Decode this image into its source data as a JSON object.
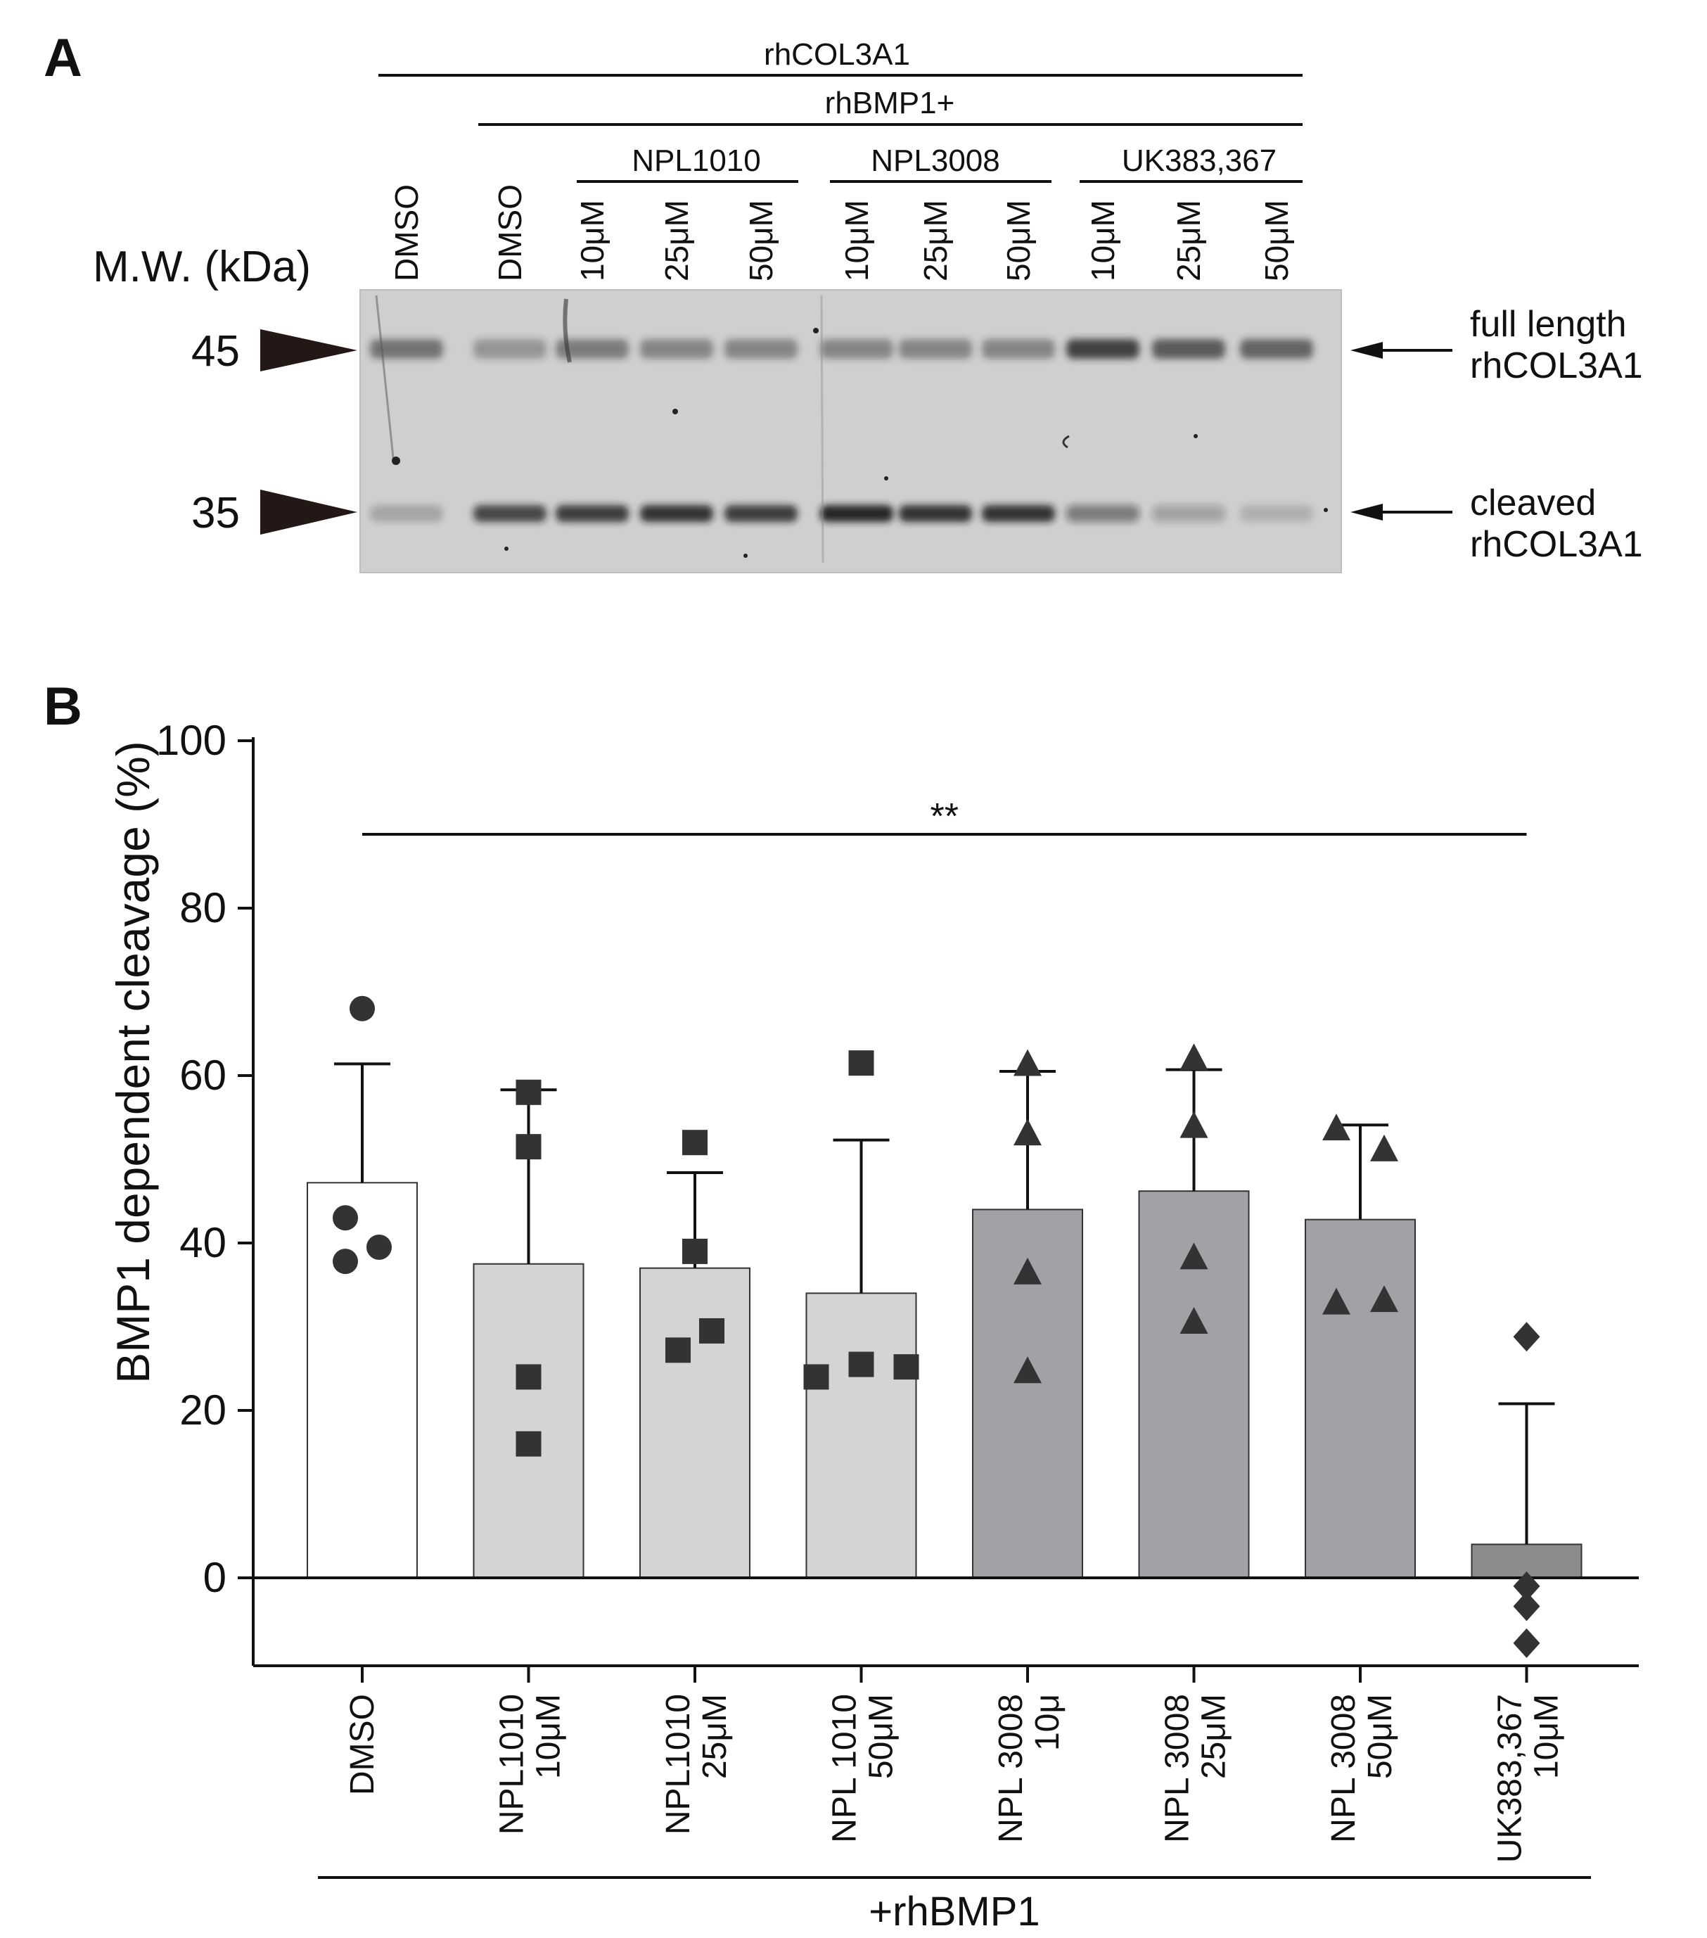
{
  "panel_a": {
    "label": "A",
    "mw_title": "M.W. (kDa)",
    "markers": [
      {
        "text": "45",
        "kda": 45
      },
      {
        "text": "35",
        "kda": 35
      }
    ],
    "header_top": "rhCOL3A1",
    "header_second": "rhBMP1+",
    "groups": [
      {
        "name": "NPL1010"
      },
      {
        "name": "NPL3008"
      },
      {
        "name": "UK383,367"
      }
    ],
    "lanes": [
      "DMSO",
      "DMSO",
      "10μM",
      "25μM",
      "50μM",
      "10μM",
      "25μM",
      "50μM",
      "10μM",
      "25μM",
      "50μM"
    ],
    "band_annotations": [
      {
        "line1": "full length",
        "line2": "rhCOL3A1"
      },
      {
        "line1": "cleaved",
        "line2": "rhCOL3A1"
      }
    ],
    "band_intensity": {
      "full_length": [
        0.55,
        0.35,
        0.5,
        0.45,
        0.45,
        0.45,
        0.45,
        0.45,
        0.85,
        0.7,
        0.65
      ],
      "cleaved": [
        0.2,
        0.75,
        0.8,
        0.85,
        0.8,
        0.95,
        0.85,
        0.85,
        0.45,
        0.25,
        0.15
      ]
    }
  },
  "panel_b": {
    "label": "B"
  },
  "chart_data": {
    "type": "bar",
    "ylabel": "BMP1 dependent cleavage (%)",
    "xlabel": "+rhBMP1",
    "ylim": [
      -10,
      100
    ],
    "yticks": [
      0,
      20,
      40,
      60,
      80,
      100
    ],
    "categories": [
      {
        "line1": "DMSO",
        "line2": ""
      },
      {
        "line1": "NPL1010",
        "line2": "10μM"
      },
      {
        "line1": "NPL1010",
        "line2": "25μM"
      },
      {
        "line1": "NPL 1010",
        "line2": "50μM"
      },
      {
        "line1": "NPL 3008",
        "line2": "10μ"
      },
      {
        "line1": "NPL 3008",
        "line2": "25μM"
      },
      {
        "line1": "NPL 3008",
        "line2": "50μM"
      },
      {
        "line1": "UK383,367",
        "line2": "10μM"
      }
    ],
    "means": [
      47.2,
      37.5,
      37.0,
      34.0,
      44.0,
      46.2,
      42.8,
      4.0
    ],
    "sd": [
      14.2,
      20.8,
      11.4,
      18.3,
      16.5,
      14.5,
      11.3,
      16.8
    ],
    "points": [
      [
        68.0,
        43.0,
        39.5,
        37.8
      ],
      [
        58.0,
        51.5,
        24.0,
        16.0
      ],
      [
        52.0,
        39.0,
        29.5,
        27.2
      ],
      [
        61.5,
        25.5,
        25.2,
        24.0
      ],
      [
        61.3,
        53.0,
        36.4,
        24.6
      ],
      [
        62.0,
        53.9,
        38.2,
        30.5
      ],
      [
        53.6,
        51.1,
        33.1,
        32.8
      ],
      [
        28.8,
        -1.0,
        -3.4,
        -7.8
      ]
    ],
    "markers": [
      "circle",
      "square",
      "square",
      "square",
      "triangle",
      "triangle",
      "triangle",
      "diamond"
    ],
    "bar_colors": [
      "#ffffff",
      "#d4d4d4",
      "#d4d4d4",
      "#d4d4d4",
      "#a2a2a6",
      "#a2a2a6",
      "#a2a2a6",
      "#8c8c8c"
    ],
    "significance": {
      "text": "**",
      "from": 0,
      "to": 7
    }
  }
}
